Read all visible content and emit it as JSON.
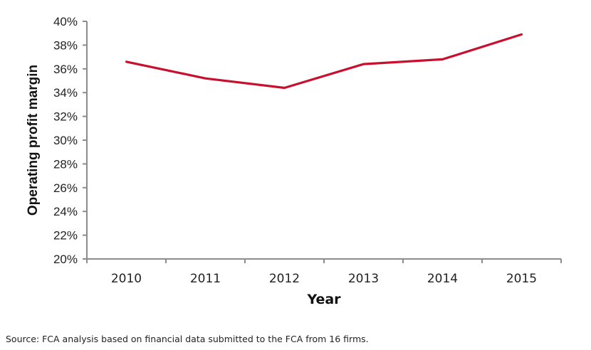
{
  "chart_data": {
    "type": "line",
    "title": "",
    "xlabel": "Year",
    "ylabel": "Operating profit margin",
    "categories": [
      "2010",
      "2011",
      "2012",
      "2013",
      "2014",
      "2015"
    ],
    "series": [
      {
        "name": "Operating profit margin",
        "color": "#c8102e",
        "values": [
          36.6,
          35.2,
          34.4,
          36.4,
          36.8,
          38.9
        ]
      }
    ],
    "y_ticks": [
      "20%",
      "22%",
      "24%",
      "26%",
      "28%",
      "30%",
      "32%",
      "34%",
      "36%",
      "38%",
      "40%"
    ],
    "ylim": [
      20,
      40
    ],
    "y_unit": "%",
    "grid": false,
    "legend": "none"
  },
  "source_note": "Source: FCA analysis based on financial data submitted to the FCA from 16 firms."
}
